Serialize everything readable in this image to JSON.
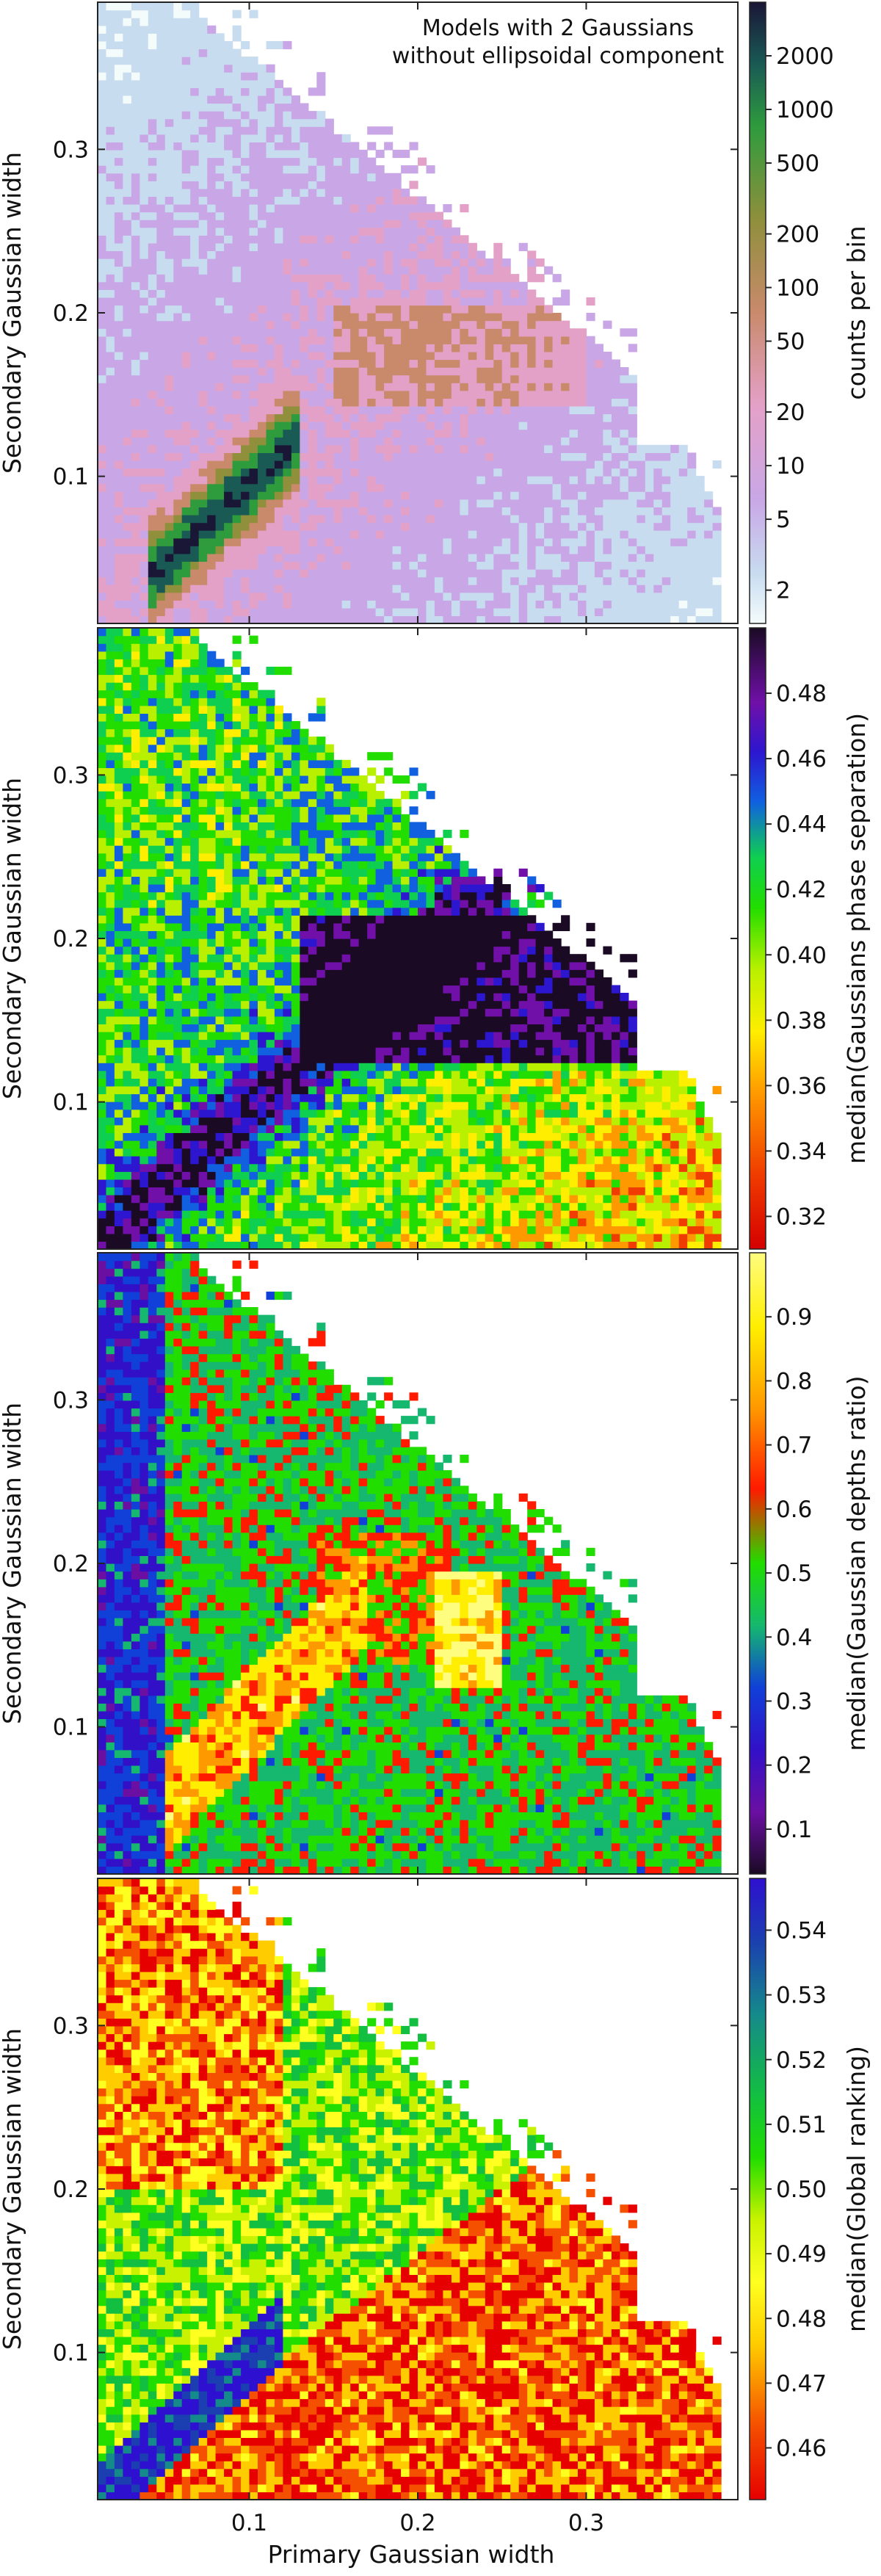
{
  "figure": {
    "annotation_lines": [
      "Models with 2 Gaussians",
      "without ellipsoidal component"
    ],
    "xlabel": "Primary Gaussian width",
    "ylabel": "Secondary Gaussian width"
  },
  "chart_data": [
    {
      "type": "heatmap",
      "title": "",
      "xlabel": "Primary Gaussian width",
      "ylabel": "Secondary Gaussian width",
      "xlim": [
        0.01,
        0.39
      ],
      "ylim": [
        0.01,
        0.39
      ],
      "xticks": [
        0.1,
        0.2,
        0.3
      ],
      "yticks": [
        0.1,
        0.2,
        0.3
      ],
      "colorbar": {
        "label": "counts per bin",
        "scale": "log",
        "range": [
          1.3,
          4000
        ],
        "ticks": [
          2,
          5,
          10,
          20,
          50,
          100,
          200,
          500,
          1000,
          2000
        ],
        "colormap": "cubehelix"
      }
    },
    {
      "type": "heatmap",
      "title": "",
      "xlabel": "Primary Gaussian width",
      "ylabel": "Secondary Gaussian width",
      "xlim": [
        0.01,
        0.39
      ],
      "ylim": [
        0.01,
        0.39
      ],
      "xticks": [
        0.1,
        0.2,
        0.3
      ],
      "yticks": [
        0.1,
        0.2,
        0.3
      ],
      "colorbar": {
        "label": "median(Gaussians phase separation)",
        "scale": "linear",
        "range": [
          0.31,
          0.5
        ],
        "ticks": [
          0.32,
          0.34,
          0.36,
          0.38,
          0.4,
          0.42,
          0.44,
          0.46,
          0.48
        ],
        "tick_labels": [
          "0.32",
          "0.34",
          "0.36",
          "0.38",
          "0.40",
          "0.42",
          "0.44",
          "0.46",
          "0.48"
        ],
        "colormap": "gnuplot-rainbow-reversed"
      }
    },
    {
      "type": "heatmap",
      "title": "",
      "xlabel": "Primary Gaussian width",
      "ylabel": "Secondary Gaussian width",
      "xlim": [
        0.01,
        0.39
      ],
      "ylim": [
        0.01,
        0.39
      ],
      "xticks": [
        0.1,
        0.2,
        0.3
      ],
      "yticks": [
        0.1,
        0.2,
        0.3
      ],
      "colorbar": {
        "label": "median(Gaussian depths ratio)",
        "scale": "linear",
        "range": [
          0.03,
          1.0
        ],
        "ticks": [
          0.1,
          0.2,
          0.3,
          0.4,
          0.5,
          0.6,
          0.7,
          0.8,
          0.9
        ],
        "tick_labels": [
          "0.1",
          "0.2",
          "0.3",
          "0.4",
          "0.5",
          "0.6",
          "0.7",
          "0.8",
          "0.9"
        ],
        "colormap": "gnuplot-rainbow"
      }
    },
    {
      "type": "heatmap",
      "title": "",
      "xlabel": "Primary Gaussian width",
      "ylabel": "Secondary Gaussian width",
      "xlim": [
        0.01,
        0.39
      ],
      "ylim": [
        0.01,
        0.39
      ],
      "xticks": [
        0.1,
        0.2,
        0.3
      ],
      "yticks": [
        0.1,
        0.2,
        0.3
      ],
      "colorbar": {
        "label": "median(Global ranking)",
        "scale": "linear",
        "range": [
          0.452,
          0.548
        ],
        "ticks": [
          0.46,
          0.47,
          0.48,
          0.49,
          0.5,
          0.51,
          0.52,
          0.53,
          0.54
        ],
        "tick_labels": [
          "0.46",
          "0.47",
          "0.48",
          "0.49",
          "0.50",
          "0.51",
          "0.52",
          "0.53",
          "0.54"
        ],
        "colormap": "gnuplot-rainbow-reversed"
      }
    }
  ]
}
